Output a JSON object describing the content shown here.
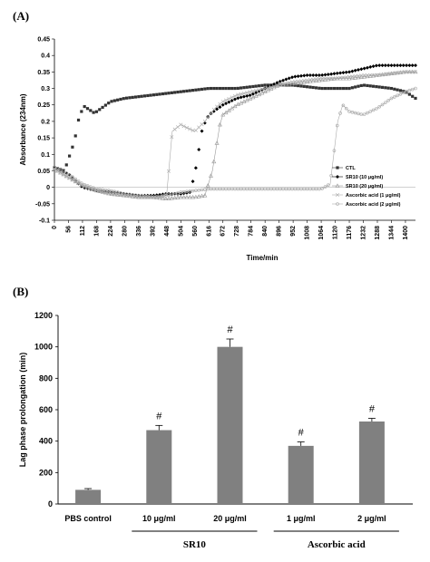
{
  "panels": {
    "a_label": "(A)",
    "b_label": "(B)"
  },
  "chart_data": [
    {
      "type": "scatter",
      "panel": "(A)",
      "xlabel": "Time/min",
      "ylabel": "Absorbance (234nm)",
      "xlim": [
        0,
        1440
      ],
      "ylim": [
        -0.1,
        0.45
      ],
      "x_ticks": [
        0,
        56,
        112,
        168,
        224,
        280,
        336,
        392,
        448,
        504,
        560,
        616,
        672,
        728,
        784,
        840,
        896,
        952,
        1008,
        1064,
        1120,
        1176,
        1232,
        1288,
        1344,
        1400
      ],
      "y_ticks": [
        -0.1,
        -0.05,
        0,
        0.05,
        0.1,
        0.15,
        0.2,
        0.25,
        0.3,
        0.35,
        0.4,
        0.45
      ],
      "y_tick_labels": [
        "-0.1",
        "-0.05",
        "0",
        "0.05",
        "0.1",
        "0.15",
        "0.2",
        "0.25",
        "0.3",
        "0.35",
        "0.4",
        "0.45"
      ],
      "legend_position": "right",
      "grid": false,
      "series": [
        {
          "name": "CTL",
          "marker": "square",
          "color": "#333333",
          "points": [
            [
              0,
              0.06
            ],
            [
              40,
              0.05
            ],
            [
              80,
              0.14
            ],
            [
              100,
              0.22
            ],
            [
              120,
              0.245
            ],
            [
              160,
              0.225
            ],
            [
              224,
              0.26
            ],
            [
              280,
              0.27
            ],
            [
              336,
              0.275
            ],
            [
              392,
              0.28
            ],
            [
              448,
              0.285
            ],
            [
              504,
              0.29
            ],
            [
              560,
              0.295
            ],
            [
              616,
              0.3
            ],
            [
              672,
              0.3
            ],
            [
              728,
              0.3
            ],
            [
              784,
              0.305
            ],
            [
              840,
              0.31
            ],
            [
              896,
              0.31
            ],
            [
              952,
              0.31
            ],
            [
              1008,
              0.305
            ],
            [
              1064,
              0.3
            ],
            [
              1120,
              0.3
            ],
            [
              1176,
              0.3
            ],
            [
              1232,
              0.31
            ],
            [
              1288,
              0.305
            ],
            [
              1344,
              0.3
            ],
            [
              1400,
              0.29
            ],
            [
              1440,
              0.27
            ]
          ]
        },
        {
          "name": "SR10 (10 μg/ml)",
          "marker": "diamond",
          "color": "#000000",
          "points": [
            [
              0,
              0.06
            ],
            [
              56,
              0.04
            ],
            [
              112,
              0.0
            ],
            [
              168,
              -0.01
            ],
            [
              224,
              -0.015
            ],
            [
              280,
              -0.02
            ],
            [
              336,
              -0.025
            ],
            [
              392,
              -0.025
            ],
            [
              448,
              -0.02
            ],
            [
              504,
              -0.02
            ],
            [
              540,
              -0.015
            ],
            [
              560,
              0.04
            ],
            [
              590,
              0.18
            ],
            [
              616,
              0.22
            ],
            [
              672,
              0.25
            ],
            [
              728,
              0.27
            ],
            [
              784,
              0.28
            ],
            [
              840,
              0.3
            ],
            [
              896,
              0.32
            ],
            [
              952,
              0.335
            ],
            [
              1008,
              0.34
            ],
            [
              1064,
              0.34
            ],
            [
              1120,
              0.345
            ],
            [
              1176,
              0.35
            ],
            [
              1232,
              0.36
            ],
            [
              1288,
              0.37
            ],
            [
              1344,
              0.37
            ],
            [
              1400,
              0.37
            ],
            [
              1440,
              0.37
            ]
          ]
        },
        {
          "name": "SR10 (20 μg/ml)",
          "marker": "triangle",
          "color": "#9a9a9a",
          "points": [
            [
              0,
              0.055
            ],
            [
              56,
              0.03
            ],
            [
              112,
              0.005
            ],
            [
              168,
              -0.01
            ],
            [
              224,
              -0.02
            ],
            [
              280,
              -0.025
            ],
            [
              336,
              -0.03
            ],
            [
              392,
              -0.03
            ],
            [
              448,
              -0.035
            ],
            [
              504,
              -0.03
            ],
            [
              560,
              -0.03
            ],
            [
              600,
              -0.025
            ],
            [
              630,
              0.05
            ],
            [
              660,
              0.19
            ],
            [
              672,
              0.22
            ],
            [
              728,
              0.25
            ],
            [
              784,
              0.27
            ],
            [
              840,
              0.29
            ],
            [
              896,
              0.31
            ],
            [
              952,
              0.315
            ],
            [
              1008,
              0.32
            ],
            [
              1064,
              0.325
            ],
            [
              1120,
              0.33
            ],
            [
              1176,
              0.33
            ],
            [
              1232,
              0.335
            ],
            [
              1288,
              0.34
            ],
            [
              1344,
              0.345
            ],
            [
              1400,
              0.35
            ],
            [
              1440,
              0.35
            ]
          ]
        },
        {
          "name": "Ascorbic acid (1 μg/ml)",
          "marker": "cross",
          "color": "#aaaaaa",
          "points": [
            [
              0,
              0.055
            ],
            [
              56,
              0.03
            ],
            [
              112,
              0.005
            ],
            [
              168,
              -0.01
            ],
            [
              224,
              -0.02
            ],
            [
              280,
              -0.025
            ],
            [
              336,
              -0.03
            ],
            [
              392,
              -0.03
            ],
            [
              420,
              -0.03
            ],
            [
              448,
              -0.02
            ],
            [
              470,
              0.17
            ],
            [
              504,
              0.19
            ],
            [
              530,
              0.18
            ],
            [
              560,
              0.17
            ],
            [
              600,
              0.2
            ],
            [
              640,
              0.24
            ],
            [
              672,
              0.26
            ],
            [
              728,
              0.28
            ],
            [
              784,
              0.29
            ],
            [
              840,
              0.3
            ],
            [
              896,
              0.31
            ],
            [
              952,
              0.32
            ],
            [
              1008,
              0.325
            ],
            [
              1064,
              0.33
            ],
            [
              1120,
              0.33
            ],
            [
              1176,
              0.335
            ],
            [
              1232,
              0.34
            ],
            [
              1288,
              0.34
            ],
            [
              1344,
              0.345
            ],
            [
              1400,
              0.35
            ],
            [
              1440,
              0.35
            ]
          ]
        },
        {
          "name": "Ascorbic acid (2 μg/ml)",
          "marker": "circle",
          "color": "#aaaaaa",
          "points": [
            [
              0,
              0.06
            ],
            [
              56,
              0.04
            ],
            [
              112,
              0.01
            ],
            [
              168,
              -0.005
            ],
            [
              224,
              -0.01
            ],
            [
              280,
              -0.02
            ],
            [
              336,
              -0.025
            ],
            [
              392,
              -0.03
            ],
            [
              448,
              -0.025
            ],
            [
              504,
              -0.015
            ],
            [
              560,
              -0.01
            ],
            [
              616,
              -0.005
            ],
            [
              672,
              -0.005
            ],
            [
              728,
              -0.005
            ],
            [
              784,
              -0.005
            ],
            [
              840,
              -0.005
            ],
            [
              896,
              -0.005
            ],
            [
              952,
              -0.005
            ],
            [
              1008,
              -0.005
            ],
            [
              1064,
              -0.005
            ],
            [
              1100,
              0.01
            ],
            [
              1130,
              0.2
            ],
            [
              1150,
              0.25
            ],
            [
              1176,
              0.23
            ],
            [
              1232,
              0.22
            ],
            [
              1288,
              0.24
            ],
            [
              1344,
              0.27
            ],
            [
              1400,
              0.29
            ],
            [
              1440,
              0.3
            ]
          ]
        }
      ]
    },
    {
      "type": "bar",
      "panel": "(B)",
      "ylabel": "Lag phase prolongation (min)",
      "ylim": [
        0,
        1200
      ],
      "y_ticks": [
        0,
        200,
        400,
        600,
        800,
        1000,
        1200
      ],
      "categories": [
        "PBS control",
        "10 μg/ml",
        "20 μg/ml",
        "1 μg/ml",
        "2 μg/ml"
      ],
      "values": [
        90,
        470,
        1000,
        370,
        525
      ],
      "errors": [
        8,
        30,
        50,
        25,
        20
      ],
      "significance": [
        "",
        "#",
        "#",
        "#",
        "#"
      ],
      "bar_color": "#808080",
      "groups": [
        {
          "label": "SR10",
          "categories": [
            "10 μg/ml",
            "20 μg/ml"
          ]
        },
        {
          "label": "Ascorbic acid",
          "categories": [
            "1 μg/ml",
            "2 μg/ml"
          ]
        }
      ]
    }
  ]
}
